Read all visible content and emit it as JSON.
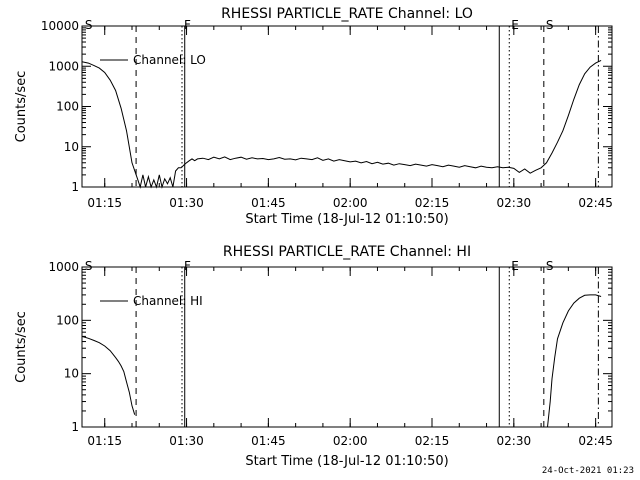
{
  "chart_data": [
    {
      "type": "line",
      "title": "RHESSI PARTICLE_RATE Channel: LO",
      "xlabel": "Start Time (18-Jul-12 01:10:50)",
      "ylabel": "Counts/sec",
      "yscale": "log",
      "ylim": [
        1,
        10000
      ],
      "xlim": [
        "01:10:50",
        "02:48:00"
      ],
      "x_ticks": [
        "01:15",
        "01:30",
        "01:45",
        "02:00",
        "02:15",
        "02:30",
        "02:45"
      ],
      "y_ticks": [
        "1",
        "10",
        "100",
        "1000",
        "10000"
      ],
      "legend": {
        "position": "top-left",
        "entries": [
          "Channel: LO"
        ]
      },
      "series": [
        {
          "name": "Channel: LO",
          "x": [
            "01:10:50",
            "01:12:00",
            "01:13:00",
            "01:14:00",
            "01:15:00",
            "01:16:00",
            "01:17:00",
            "01:18:00",
            "01:19:00",
            "01:20:00",
            "01:21:00",
            "01:21:30",
            "01:22:00",
            "01:22:30",
            "01:23:00",
            "01:23:30",
            "01:24:00",
            "01:24:30",
            "01:25:00",
            "01:25:30",
            "01:26:00",
            "01:26:30",
            "01:27:00",
            "01:27:30",
            "01:28:00",
            "01:28:30",
            "01:29:00",
            "01:29:30",
            "01:30:00",
            "01:30:30",
            "01:31:00",
            "01:31:30",
            "01:32:00",
            "01:33:00",
            "01:34:00",
            "01:35:00",
            "01:36:00",
            "01:37:00",
            "01:38:00",
            "01:39:00",
            "01:40:00",
            "01:41:00",
            "01:42:00",
            "01:43:00",
            "01:44:00",
            "01:45:00",
            "01:46:00",
            "01:47:00",
            "01:48:00",
            "01:49:00",
            "01:50:00",
            "01:51:00",
            "01:52:00",
            "01:53:00",
            "01:54:00",
            "01:55:00",
            "01:56:00",
            "01:57:00",
            "01:58:00",
            "01:59:00",
            "02:00:00",
            "02:01:00",
            "02:02:00",
            "02:03:00",
            "02:04:00",
            "02:05:00",
            "02:06:00",
            "02:07:00",
            "02:08:00",
            "02:09:00",
            "02:10:00",
            "02:11:00",
            "02:12:00",
            "02:13:00",
            "02:14:00",
            "02:15:00",
            "02:16:00",
            "02:17:00",
            "02:18:00",
            "02:19:00",
            "02:20:00",
            "02:21:00",
            "02:22:00",
            "02:23:00",
            "02:24:00",
            "02:25:00",
            "02:26:00",
            "02:27:00",
            "02:28:00",
            "02:29:00",
            "02:30:00",
            "02:31:00",
            "02:32:00",
            "02:33:00",
            "02:34:00",
            "02:35:00",
            "02:36:00",
            "02:37:00",
            "02:38:00",
            "02:39:00",
            "02:40:00",
            "02:41:00",
            "02:42:00",
            "02:43:00",
            "02:44:00",
            "02:45:00",
            "02:46:00"
          ],
          "y": [
            1300,
            1200,
            1050,
            900,
            700,
            450,
            250,
            90,
            25,
            4,
            1.6,
            1,
            2,
            1,
            1.8,
            1,
            1.5,
            1,
            2,
            1,
            1.6,
            1.2,
            1.7,
            1,
            2.5,
            3,
            3,
            3.5,
            4,
            4.5,
            5,
            4.5,
            5,
            5.2,
            4.8,
            5.5,
            5,
            5.6,
            4.8,
            5.2,
            5.5,
            4.9,
            5.3,
            5,
            5.1,
            4.8,
            5,
            5.4,
            4.9,
            5,
            4.7,
            5.2,
            5,
            4.8,
            5.3,
            4.6,
            5,
            4.4,
            4.8,
            4.5,
            4.2,
            4.4,
            4,
            4.3,
            3.8,
            4.1,
            3.7,
            3.9,
            3.5,
            3.8,
            3.6,
            3.4,
            3.7,
            3.5,
            3.3,
            3.6,
            3.4,
            3.2,
            3.5,
            3.3,
            3.1,
            3.4,
            3.2,
            3,
            3.3,
            3.1,
            3,
            3.2,
            3,
            3.1,
            2.9,
            2.3,
            2.8,
            2.2,
            2.6,
            3,
            4,
            7,
            13,
            25,
            60,
            150,
            350,
            650,
            950,
            1200,
            1400
          ]
        }
      ],
      "annotations": [
        {
          "label": "S",
          "x": "01:11:00",
          "style": "none"
        },
        {
          "label": "",
          "x": "01:20:45",
          "style": "dashed"
        },
        {
          "label": "F",
          "x": "01:29:10",
          "style": "dotted"
        },
        {
          "label": "",
          "x": "01:29:40",
          "style": "solid"
        },
        {
          "label": "",
          "x": "02:27:20",
          "style": "solid"
        },
        {
          "label": "E",
          "x": "02:29:10",
          "style": "dotted"
        },
        {
          "label": "S",
          "x": "02:35:30",
          "style": "dashed"
        },
        {
          "label": "",
          "x": "02:45:30",
          "style": "dashdot"
        }
      ]
    },
    {
      "type": "line",
      "title": "RHESSI PARTICLE_RATE Channel: HI",
      "xlabel": "Start Time (18-Jul-12 01:10:50)",
      "ylabel": "Counts/sec",
      "yscale": "log",
      "ylim": [
        1,
        1000
      ],
      "xlim": [
        "01:10:50",
        "02:48:00"
      ],
      "x_ticks": [
        "01:15",
        "01:30",
        "01:45",
        "02:00",
        "02:15",
        "02:30",
        "02:45"
      ],
      "y_ticks": [
        "1",
        "10",
        "100",
        "1000"
      ],
      "legend": {
        "position": "top-left",
        "entries": [
          "Channel: HI"
        ]
      },
      "series": [
        {
          "name": "Channel: HI",
          "x": [
            "01:10:50",
            "01:12:00",
            "01:13:00",
            "01:14:00",
            "01:15:00",
            "01:16:00",
            "01:17:00",
            "01:17:30",
            "01:18:00",
            "01:18:30",
            "01:19:00",
            "01:19:30",
            "01:20:00",
            "01:20:30"
          ],
          "y": [
            50,
            46,
            42,
            38,
            33,
            27,
            20,
            17,
            14,
            11,
            7,
            4.5,
            2.5,
            1.7
          ]
        },
        {
          "name": "Channel: HI",
          "x": [
            "02:36:10",
            "02:36:40",
            "02:37:00",
            "02:37:30",
            "02:38:00",
            "02:39:00",
            "02:40:00",
            "02:41:00",
            "02:42:00",
            "02:43:00",
            "02:44:00",
            "02:45:00",
            "02:46:00"
          ],
          "y": [
            1,
            3,
            8,
            20,
            45,
            90,
            150,
            210,
            260,
            295,
            300,
            300,
            280
          ]
        }
      ],
      "annotations": [
        {
          "label": "S",
          "x": "01:11:00",
          "style": "none"
        },
        {
          "label": "",
          "x": "01:20:45",
          "style": "dashed"
        },
        {
          "label": "F",
          "x": "01:29:10",
          "style": "dotted"
        },
        {
          "label": "",
          "x": "01:29:40",
          "style": "solid"
        },
        {
          "label": "",
          "x": "02:27:20",
          "style": "solid"
        },
        {
          "label": "E",
          "x": "02:29:10",
          "style": "dotted"
        },
        {
          "label": "S",
          "x": "02:35:30",
          "style": "dashed"
        },
        {
          "label": "",
          "x": "02:45:30",
          "style": "dashdot"
        }
      ]
    }
  ],
  "footer": {
    "timestamp": "24-Oct-2021 01:23"
  },
  "colors": {
    "background": "#ffffff",
    "foreground": "#000000"
  }
}
